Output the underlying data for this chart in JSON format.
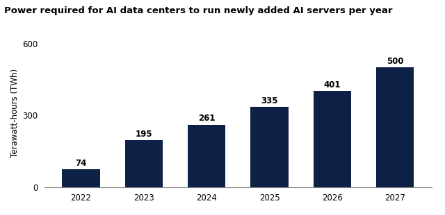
{
  "title": "Power required for AI data centers to run newly added AI servers per year",
  "ylabel": "Terawatt-hours (TWh)",
  "categories": [
    "2022",
    "2023",
    "2024",
    "2025",
    "2026",
    "2027"
  ],
  "values": [
    74,
    195,
    261,
    335,
    401,
    500
  ],
  "bar_color": "#0d2045",
  "ylim": [
    0,
    620
  ],
  "yticks": [
    0,
    300,
    600
  ],
  "title_fontsize": 9.5,
  "label_fontsize": 8.5,
  "tick_fontsize": 8.5,
  "bar_label_fontsize": 8.5,
  "background_color": "#ffffff"
}
